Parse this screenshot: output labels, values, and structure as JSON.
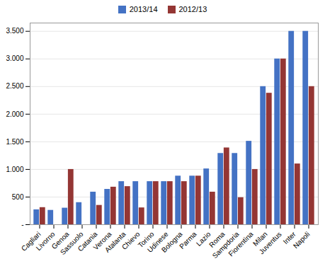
{
  "chart_data": {
    "type": "bar",
    "categories": [
      "Cagliari",
      "Livorno",
      "Genoa",
      "Sassuolo",
      "Catania",
      "Verona",
      "Atalanta",
      "Chievo",
      "Torino",
      "Udinese",
      "Bologna",
      "Parma",
      "Lazio",
      "Roma",
      "Sampdoria",
      "Fiorentina",
      "Milan",
      "Juventus",
      "Inter",
      "Napoli"
    ],
    "series": [
      {
        "name": "2013/14",
        "color": "#4472c4",
        "values": [
          270,
          260,
          300,
          400,
          590,
          640,
          780,
          780,
          780,
          780,
          880,
          880,
          1010,
          1290,
          1290,
          1510,
          2500,
          3000,
          3500,
          3500
        ]
      },
      {
        "name": "2012/13",
        "color": "#943634",
        "values": [
          310,
          0,
          1000,
          0,
          350,
          680,
          690,
          305,
          780,
          780,
          780,
          880,
          590,
          1390,
          490,
          1000,
          2380,
          3000,
          1100,
          2500
        ]
      }
    ],
    "ylim": [
      0,
      3650
    ],
    "yticks": [
      {
        "value": 0,
        "label": "-"
      },
      500,
      {
        "value": 1000,
        "label": "1.000"
      },
      {
        "value": 1500,
        "label": "1.500"
      },
      {
        "value": 2000,
        "label": "2.000"
      },
      {
        "value": 2500,
        "label": "2.500"
      },
      {
        "value": 3000,
        "label": "3.000"
      },
      {
        "value": 3500,
        "label": "3.500"
      }
    ],
    "grid": true,
    "legend": "upper center"
  }
}
